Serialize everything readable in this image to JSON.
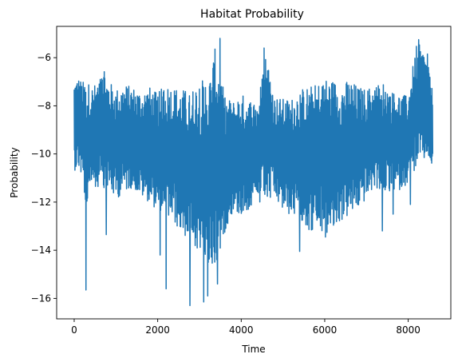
{
  "chart_data": {
    "type": "line",
    "title": "Habitat Probability",
    "xlabel": "Time",
    "ylabel": "Probability",
    "xlim": [
      -420,
      9020
    ],
    "ylim": [
      -16.85,
      -4.7
    ],
    "x_ticks": [
      0,
      2000,
      4000,
      6000,
      8000
    ],
    "x_tick_labels": [
      "0",
      "2000",
      "4000",
      "6000",
      "8000"
    ],
    "y_ticks": [
      -16,
      -14,
      -12,
      -10,
      -8,
      -6
    ],
    "y_tick_labels": [
      "−16",
      "−14",
      "−12",
      "−10",
      "−8",
      "−6"
    ],
    "grid": false,
    "line_color": "#1f77b4",
    "series": [
      {
        "envelope_x": [
          0,
          100,
          200,
          300,
          400,
          500,
          600,
          700,
          800,
          900,
          1000,
          1200,
          1400,
          1600,
          1800,
          2000,
          2200,
          2400,
          2600,
          2800,
          3000,
          3200,
          3400,
          3600,
          3800,
          4000,
          4200,
          4400,
          4600,
          4800,
          5000,
          5200,
          5400,
          5600,
          5800,
          6000,
          6200,
          6400,
          6600,
          6800,
          7000,
          7200,
          7400,
          7600,
          7800,
          8000,
          8200,
          8400,
          8590
        ],
        "envelope_upper": [
          -6.9,
          -6.8,
          -7.0,
          -6.9,
          -7.2,
          -7.1,
          -6.9,
          -6.5,
          -6.9,
          -7.1,
          -7.3,
          -7.1,
          -7.2,
          -7.4,
          -7.2,
          -7.5,
          -7.0,
          -7.2,
          -7.3,
          -7.4,
          -6.8,
          -7.1,
          -5.4,
          -7.6,
          -7.8,
          -7.5,
          -7.7,
          -7.8,
          -5.7,
          -7.6,
          -7.7,
          -7.7,
          -7.3,
          -7.2,
          -7.1,
          -6.8,
          -6.9,
          -7.1,
          -6.9,
          -7.2,
          -7.3,
          -7.1,
          -7.0,
          -7.4,
          -7.5,
          -7.6,
          -5.3,
          -5.8,
          -6.9
        ],
        "envelope_lower": [
          -10.7,
          -10.6,
          -11.1,
          -12.6,
          -11.3,
          -11.5,
          -11.3,
          -11.8,
          -11.4,
          -11.7,
          -11.9,
          -11.6,
          -11.4,
          -11.8,
          -12.0,
          -12.4,
          -12.6,
          -12.9,
          -13.4,
          -13.6,
          -14.2,
          -14.9,
          -14.8,
          -13.3,
          -12.4,
          -12.6,
          -12.3,
          -12.2,
          -12.1,
          -11.9,
          -12.4,
          -12.6,
          -12.6,
          -13.2,
          -13.3,
          -13.4,
          -13.3,
          -12.8,
          -12.6,
          -12.3,
          -11.9,
          -11.4,
          -11.6,
          -11.7,
          -11.5,
          -11.2,
          -10.5,
          -10.3,
          -10.4
        ],
        "spikes": [
          {
            "x": 280,
            "y": -15.65
          },
          {
            "x": 770,
            "y": -13.35
          },
          {
            "x": 2060,
            "y": -14.2
          },
          {
            "x": 2200,
            "y": -15.6
          },
          {
            "x": 2770,
            "y": -16.3
          },
          {
            "x": 3100,
            "y": -16.15
          },
          {
            "x": 3200,
            "y": -15.9
          },
          {
            "x": 3430,
            "y": -15.4
          },
          {
            "x": 3490,
            "y": -5.2
          },
          {
            "x": 4550,
            "y": -5.6
          },
          {
            "x": 5400,
            "y": -14.05
          },
          {
            "x": 6020,
            "y": -13.45
          },
          {
            "x": 7380,
            "y": -13.2
          },
          {
            "x": 7640,
            "y": -12.5
          },
          {
            "x": 8050,
            "y": -12.1
          },
          {
            "x": 8250,
            "y": -5.25
          },
          {
            "x": 8460,
            "y": -5.85
          }
        ]
      }
    ]
  }
}
